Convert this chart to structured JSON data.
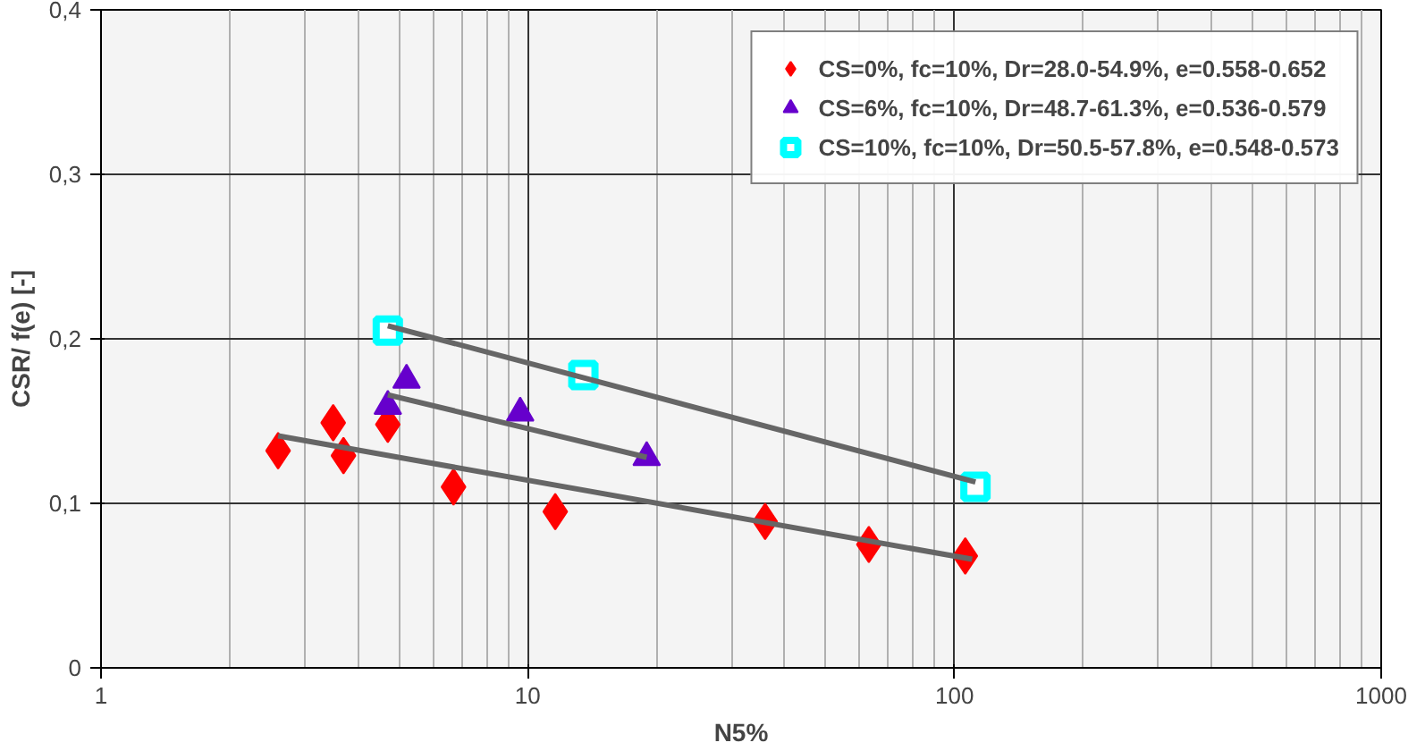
{
  "chart_data": {
    "type": "scatter",
    "xlabel": "N5%",
    "ylabel": "CSR/ f(e) [-]",
    "log": "x",
    "grid": true,
    "legend": "top right",
    "xlim": [
      1,
      1000
    ],
    "xticks": [
      1,
      10,
      100,
      1000
    ],
    "ylim": [
      0,
      0.4
    ],
    "yticks": [
      0,
      {
        "value": 0.1,
        "label": "0,1"
      },
      {
        "value": 0.2,
        "label": "0,2"
      },
      {
        "value": 0.3,
        "label": "0,3"
      },
      {
        "value": 0.4,
        "label": "0,4"
      }
    ],
    "series": [
      {
        "name": "CS=0%, fc=10%, Dr=28.0-54.9%, e=0.558-0.652",
        "color": "#ff0000",
        "marker": "diamond",
        "x": [
          2.6,
          3.5,
          3.7,
          4.7,
          6.7,
          11.6,
          36,
          63,
          106
        ],
        "values": [
          0.132,
          0.149,
          0.129,
          0.148,
          0.11,
          0.095,
          0.089,
          0.075,
          0.068
        ]
      },
      {
        "name": "CS=6%, fc=10%, Dr=48.7-61.3%, e=0.536-0.579",
        "color": "#6600cc",
        "marker": "triangle",
        "x": [
          4.7,
          5.2,
          9.6,
          19
        ],
        "values": [
          0.159,
          0.175,
          0.155,
          0.128
        ]
      },
      {
        "name": "CS=10%, fc=10%, Dr=50.5-57.8%, e=0.548-0.573",
        "color": "#00ffff",
        "marker": "square",
        "x": [
          4.7,
          13.5,
          112
        ],
        "values": [
          0.205,
          0.178,
          0.11
        ]
      },
      {
        "type": "line",
        "color": "#666666",
        "x": [
          2.6,
          110
        ],
        "values": [
          0.141,
          0.066
        ]
      },
      {
        "type": "line",
        "color": "#666666",
        "x": [
          4.7,
          19
        ],
        "values": [
          0.166,
          0.128
        ]
      },
      {
        "type": "line",
        "color": "#666666",
        "x": [
          4.7,
          112
        ],
        "values": [
          0.208,
          0.113
        ]
      }
    ]
  }
}
